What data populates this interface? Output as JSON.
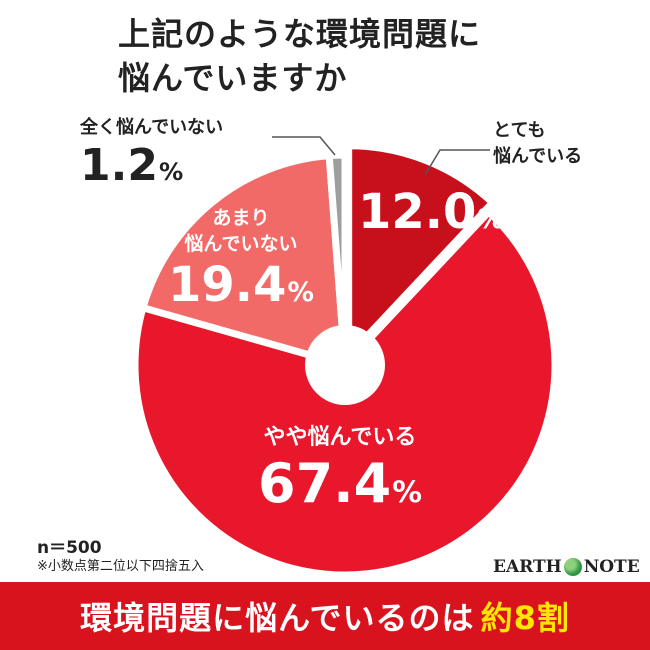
{
  "title": {
    "line1": "上記のような環境問題に",
    "line2": "悩んでいますか"
  },
  "chart_data": {
    "type": "pie",
    "slices": [
      {
        "label": "とても\n悩んでいる",
        "value": 12.0,
        "display": "12.0",
        "color": "#c8101c"
      },
      {
        "label": "やや悩んでいる",
        "value": 67.4,
        "display": "67.4",
        "color": "#e8172b"
      },
      {
        "label": "あまり\n悩んでいない",
        "value": 19.4,
        "display": "19.4",
        "color": "#f26a68"
      },
      {
        "label": "全く悩んでいない",
        "value": 1.2,
        "display": "1.2",
        "color": "#9e9e9e"
      }
    ],
    "unit": "%"
  },
  "notes": {
    "n": "n＝500",
    "rounding": "※小数点第二位以下四捨五入"
  },
  "logo": {
    "left": "EARTH",
    "right": "NOTE"
  },
  "banner": {
    "text": "環境問題に悩んでいるのは",
    "highlight": "約8割"
  }
}
